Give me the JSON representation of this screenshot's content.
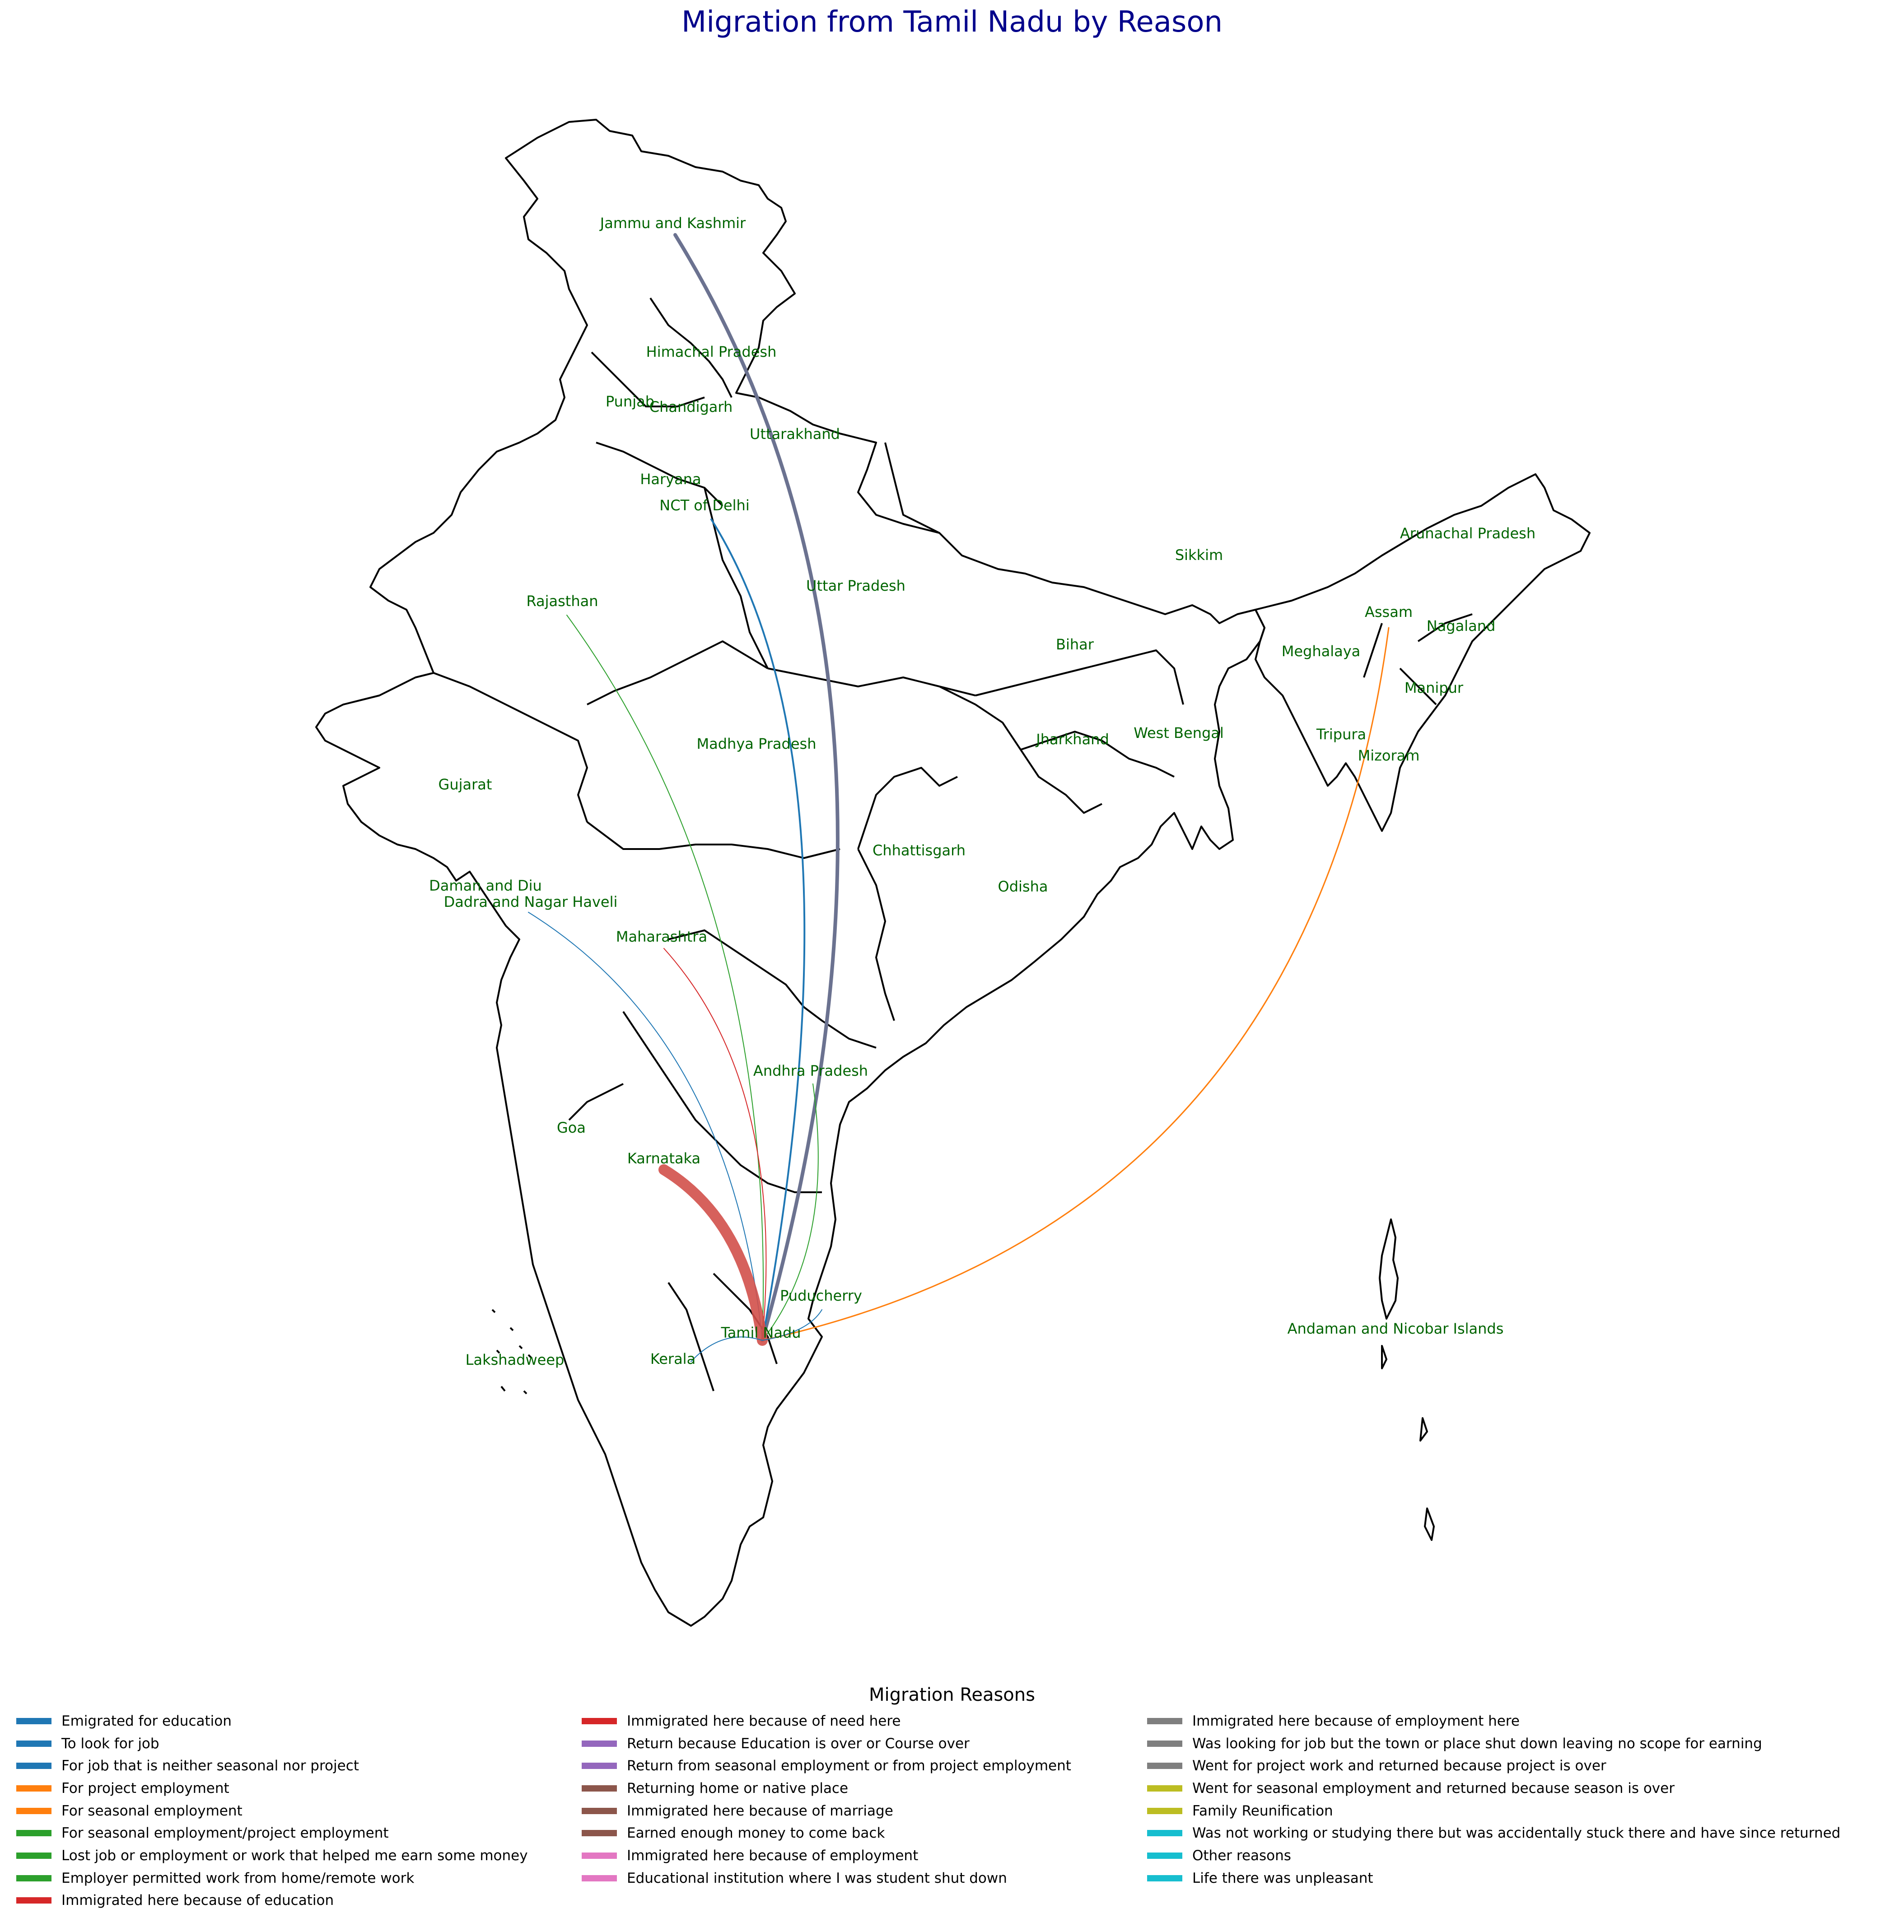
{
  "title": "Migration from Tamil Nadu by Reason",
  "origin": "Tamil Nadu",
  "states": [
    {
      "name": "Jammu and Kashmir"
    },
    {
      "name": "Himachal Pradesh"
    },
    {
      "name": "Punjab"
    },
    {
      "name": "Chandigarh"
    },
    {
      "name": "Uttarakhand"
    },
    {
      "name": "Haryana"
    },
    {
      "name": "NCT of Delhi"
    },
    {
      "name": "Uttar Pradesh"
    },
    {
      "name": "Rajasthan"
    },
    {
      "name": "Sikkim"
    },
    {
      "name": "Arunachal Pradesh"
    },
    {
      "name": "Assam"
    },
    {
      "name": "Nagaland"
    },
    {
      "name": "Meghalaya"
    },
    {
      "name": "Bihar"
    },
    {
      "name": "Manipur"
    },
    {
      "name": "Madhya Pradesh"
    },
    {
      "name": "Jharkhand"
    },
    {
      "name": "West Bengal"
    },
    {
      "name": "Tripura"
    },
    {
      "name": "Mizoram"
    },
    {
      "name": "Gujarat"
    },
    {
      "name": "Chhattisgarh"
    },
    {
      "name": "Odisha"
    },
    {
      "name": "Daman and Diu"
    },
    {
      "name": "Dadra and Nagar Haveli"
    },
    {
      "name": "Maharashtra"
    },
    {
      "name": "Andhra Pradesh"
    },
    {
      "name": "Goa"
    },
    {
      "name": "Karnataka"
    },
    {
      "name": "Puducherry"
    },
    {
      "name": "Tamil Nadu"
    },
    {
      "name": "Andaman and Nicobar Islands"
    },
    {
      "name": "Lakshadweep"
    },
    {
      "name": "Kerala"
    }
  ],
  "flows": [
    {
      "to": "Jammu and Kashmir",
      "reason_group": "mixed",
      "color": "#6b7290",
      "weight": 8
    },
    {
      "to": "NCT of Delhi",
      "reason_group": "job",
      "color": "#1f77b4",
      "weight": 4
    },
    {
      "to": "Rajasthan",
      "reason_group": "seasonal",
      "color": "#2ca02c",
      "weight": 2
    },
    {
      "to": "Assam",
      "reason_group": "project",
      "color": "#ff7f0e",
      "weight": 3
    },
    {
      "to": "Dadra and Nagar Haveli",
      "reason_group": "job",
      "color": "#1f77b4",
      "weight": 2
    },
    {
      "to": "Maharashtra",
      "reason_group": "education",
      "color": "#d62728",
      "weight": 2
    },
    {
      "to": "Andhra Pradesh",
      "reason_group": "seasonal",
      "color": "#2ca02c",
      "weight": 2
    },
    {
      "to": "Karnataka",
      "reason_group": "mixed",
      "color": "#d1504a",
      "weight": 24
    },
    {
      "to": "Kerala",
      "reason_group": "job",
      "color": "#1f77b4",
      "weight": 2
    },
    {
      "to": "Puducherry",
      "reason_group": "job",
      "color": "#1f77b4",
      "weight": 2
    }
  ],
  "legend": {
    "title": "Migration Reasons",
    "columns": [
      [
        {
          "label": "Emigrated for education",
          "color": "#1f77b4"
        },
        {
          "label": "To look for job",
          "color": "#1f77b4"
        },
        {
          "label": "For job that is neither seasonal nor project",
          "color": "#1f77b4"
        },
        {
          "label": "For project employment",
          "color": "#ff7f0e"
        },
        {
          "label": "For seasonal employment",
          "color": "#ff7f0e"
        },
        {
          "label": "For seasonal employment/project employment",
          "color": "#2ca02c"
        },
        {
          "label": "Lost job or employment or work that helped me earn some money",
          "color": "#2ca02c"
        },
        {
          "label": "Employer permitted work from home/remote work",
          "color": "#2ca02c"
        },
        {
          "label": "Immigrated here because of education",
          "color": "#d62728"
        }
      ],
      [
        {
          "label": "Immigrated here because of need here",
          "color": "#d62728"
        },
        {
          "label": "Return because Education is over or Course over",
          "color": "#9467bd"
        },
        {
          "label": "Return from seasonal employment or from project employment",
          "color": "#9467bd"
        },
        {
          "label": "Returning home or native place",
          "color": "#8c564b"
        },
        {
          "label": "Immigrated here because of marriage",
          "color": "#8c564b"
        },
        {
          "label": "Earned enough money to come back",
          "color": "#8c564b"
        },
        {
          "label": "Immigrated here because of employment",
          "color": "#e377c2"
        },
        {
          "label": "Educational institution where I was student shut down",
          "color": "#e377c2"
        }
      ],
      [
        {
          "label": "Immigrated here because of employment here",
          "color": "#7f7f7f"
        },
        {
          "label": "Was looking for job but the town or place shut down leaving no scope for earning",
          "color": "#7f7f7f"
        },
        {
          "label": "Went for project work and returned because project is over",
          "color": "#7f7f7f"
        },
        {
          "label": "Went for seasonal employment and returned because season is over",
          "color": "#bcbd22"
        },
        {
          "label": "Family Reunification",
          "color": "#bcbd22"
        },
        {
          "label": "Was not working or studying there but was accidentally stuck there and have since returned",
          "color": "#17becf"
        },
        {
          "label": "Other reasons",
          "color": "#17becf"
        },
        {
          "label": "Life there was unpleasant",
          "color": "#17becf"
        }
      ]
    ]
  }
}
